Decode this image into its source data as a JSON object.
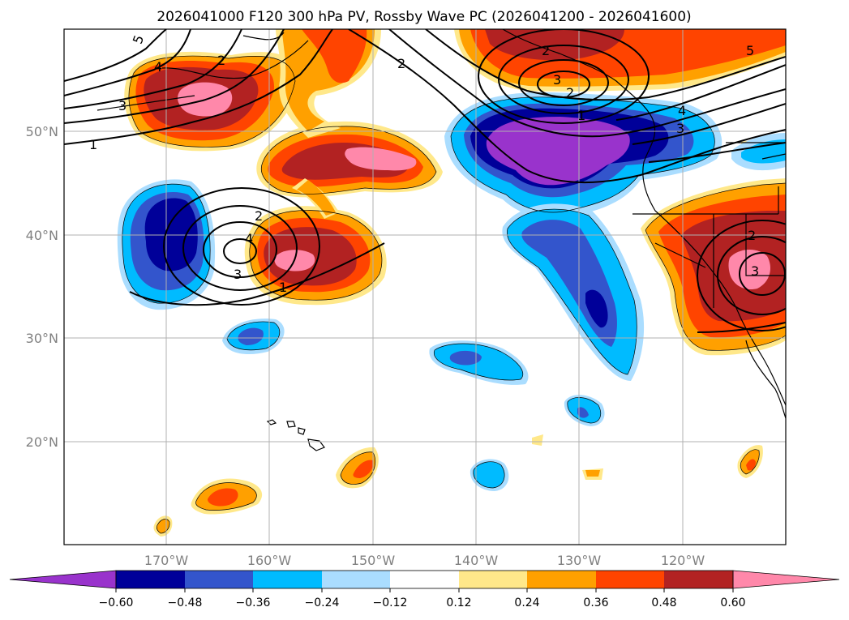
{
  "chart_data": {
    "type": "heatmap",
    "title": "2026041000 F120 300 hPa PV, Rossby Wave PC (2026041200 - 2026041600)",
    "xlabel": "",
    "ylabel": "",
    "lon_range": [
      -180,
      -110
    ],
    "lat_range": [
      10,
      60
    ],
    "x_ticks": [
      "170°W",
      "160°W",
      "150°W",
      "140°W",
      "130°W",
      "120°W"
    ],
    "y_ticks": [
      "50°N",
      "40°N",
      "30°N",
      "20°N"
    ],
    "colorbar": {
      "tick_labels": [
        "−0.60",
        "−0.48",
        "−0.36",
        "−0.24",
        "−0.12",
        "0.12",
        "0.24",
        "0.36",
        "0.48",
        "0.60"
      ],
      "colors": [
        "#9933cc",
        "#000099",
        "#3355cc",
        "#00bbff",
        "#aaddff",
        "#ffffff",
        "#ffe88a",
        "#ffa000",
        "#ff4400",
        "#b22222",
        "#ff88aa"
      ],
      "extend": "both"
    },
    "contour_labels": [
      "5",
      "4",
      "3",
      "2",
      "1",
      "2",
      "4",
      "3",
      "1",
      "2",
      "2",
      "5",
      "4",
      "3",
      "3",
      "2",
      "3",
      "2",
      "1"
    ],
    "features": [
      {
        "name": "positive anomaly",
        "center": [
          -165,
          53
        ],
        "peak": 0.6
      },
      {
        "name": "positive anomaly",
        "center": [
          -153,
          48
        ],
        "peak": 0.6
      },
      {
        "name": "positive anomaly",
        "center": [
          -158,
          38
        ],
        "peak": 0.6
      },
      {
        "name": "positive anomaly",
        "center": [
          -132,
          58
        ],
        "peak": 0.48
      },
      {
        "name": "positive anomaly",
        "center": [
          -112,
          37
        ],
        "peak": 0.6
      },
      {
        "name": "negative anomaly",
        "center": [
          -131,
          48.5
        ],
        "peak": -0.6
      },
      {
        "name": "negative anomaly",
        "center": [
          -168,
          40
        ],
        "peak": -0.48
      },
      {
        "name": "negative anomaly",
        "center": [
          -129.5,
          34
        ],
        "peak": -0.48
      },
      {
        "name": "negative anomaly",
        "center": [
          -161,
          30.5
        ],
        "peak": -0.36
      },
      {
        "name": "negative anomaly",
        "center": [
          -141,
          28.5
        ],
        "peak": -0.36
      }
    ]
  }
}
